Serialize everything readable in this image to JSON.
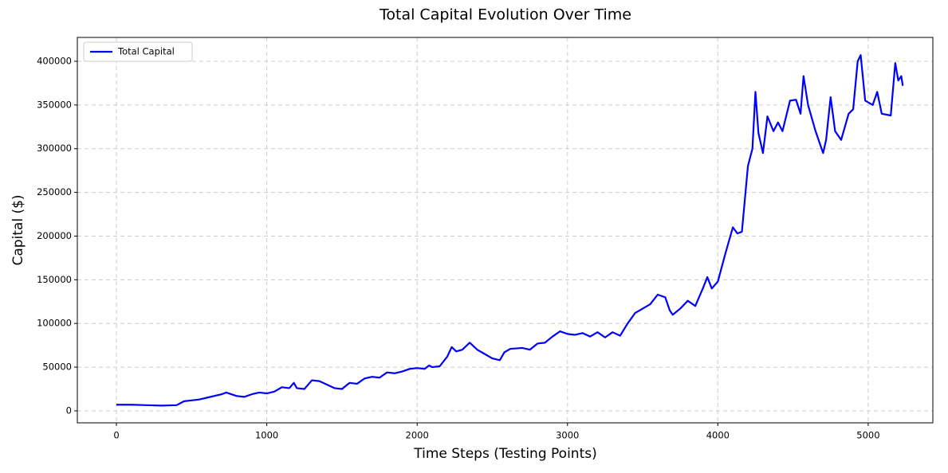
{
  "chart_data": {
    "type": "line",
    "title": "Total Capital Evolution Over Time",
    "x_label": "Time Steps (Testing Points)",
    "y_label": "Capital ($)",
    "legend": "upper left",
    "grid": true,
    "xlim": [
      -260,
      5430
    ],
    "ylim": [
      -13700,
      427300
    ],
    "xticks": [
      0,
      1000,
      2000,
      3000,
      4000,
      5000
    ],
    "yticks": [
      0,
      50000,
      100000,
      150000,
      200000,
      250000,
      300000,
      350000,
      400000
    ],
    "x": [
      0,
      100,
      200,
      300,
      400,
      450,
      500,
      550,
      600,
      700,
      730,
      800,
      850,
      900,
      950,
      1000,
      1050,
      1100,
      1150,
      1180,
      1200,
      1250,
      1300,
      1350,
      1400,
      1450,
      1500,
      1550,
      1600,
      1650,
      1700,
      1750,
      1800,
      1850,
      1900,
      1950,
      2000,
      2050,
      2080,
      2100,
      2150,
      2200,
      2230,
      2260,
      2300,
      2350,
      2400,
      2450,
      2500,
      2550,
      2580,
      2620,
      2700,
      2750,
      2800,
      2850,
      2900,
      2950,
      3000,
      3050,
      3100,
      3150,
      3200,
      3250,
      3300,
      3350,
      3400,
      3450,
      3500,
      3550,
      3600,
      3650,
      3680,
      3700,
      3750,
      3800,
      3850,
      3900,
      3930,
      3960,
      4000,
      4050,
      4100,
      4130,
      4160,
      4200,
      4230,
      4250,
      4270,
      4300,
      4330,
      4370,
      4400,
      4430,
      4480,
      4520,
      4550,
      4570,
      4600,
      4650,
      4700,
      4720,
      4750,
      4780,
      4820,
      4870,
      4900,
      4930,
      4950,
      4980,
      5030,
      5060,
      5090,
      5150,
      5180,
      5200,
      5220,
      5230
    ],
    "series": [
      {
        "name": "Total Capital",
        "color": "#0000ff",
        "values": [
          7000,
          7000,
          6500,
          6000,
          6500,
          11000,
          12000,
          13000,
          15000,
          19000,
          21000,
          17000,
          16000,
          19000,
          21000,
          20000,
          22000,
          27000,
          26000,
          32000,
          26000,
          25000,
          35000,
          34000,
          30000,
          26000,
          25000,
          32000,
          31000,
          37000,
          39000,
          38000,
          44000,
          43000,
          45000,
          48000,
          49000,
          48000,
          52000,
          50000,
          51000,
          62000,
          73000,
          68000,
          70000,
          78000,
          70000,
          65000,
          60000,
          58000,
          67000,
          71000,
          72000,
          70000,
          77000,
          78000,
          85000,
          91000,
          88000,
          87000,
          89000,
          85000,
          90000,
          84000,
          90000,
          86000,
          100000,
          112000,
          117000,
          122000,
          133000,
          130000,
          115000,
          110000,
          117000,
          126000,
          120000,
          140000,
          153000,
          140000,
          148000,
          180000,
          210000,
          203000,
          205000,
          280000,
          300000,
          365000,
          318000,
          295000,
          337000,
          320000,
          330000,
          320000,
          355000,
          356000,
          340000,
          383000,
          350000,
          320000,
          295000,
          310000,
          359000,
          320000,
          310000,
          340000,
          345000,
          400000,
          407000,
          355000,
          350000,
          365000,
          340000,
          338000,
          398000,
          378000,
          383000,
          372000
        ]
      }
    ]
  }
}
